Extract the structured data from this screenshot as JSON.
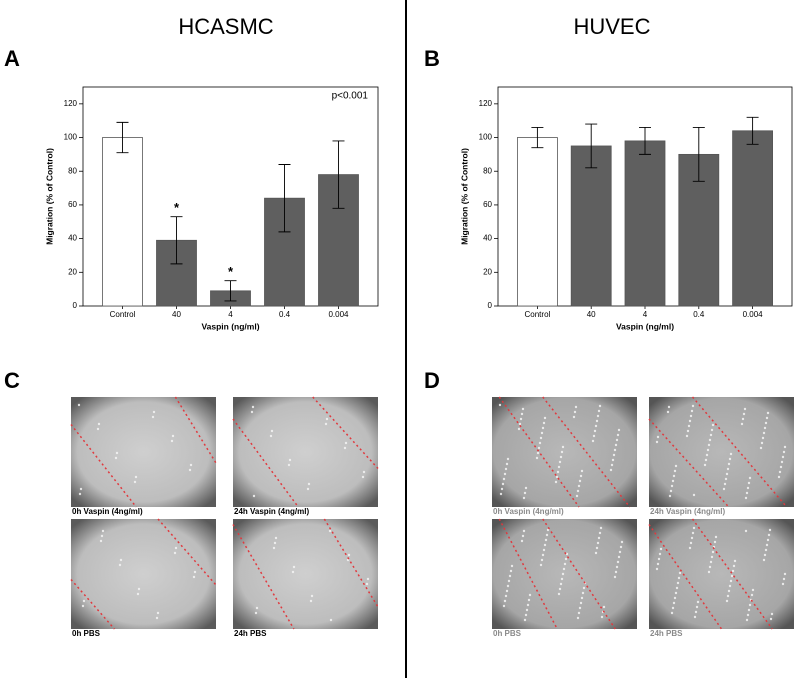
{
  "columns": [
    "HCASMC",
    "HUVEC"
  ],
  "panels": [
    "A",
    "B",
    "C",
    "D"
  ],
  "image_captions": {
    "C": [
      "0h Vaspin (4ng/ml)",
      "24h Vaspin (4ng/ml)",
      "0h PBS",
      "24h PBS"
    ],
    "D": [
      "0h Vaspin (4ng/ml)",
      "24h Vaspin (4ng/ml)",
      "0h PBS",
      "24h PBS"
    ]
  },
  "chart_data": [
    {
      "type": "bar",
      "x_label": "Vaspin (ng/ml)",
      "y_label": "Migration (% of Control)",
      "annotation": "p<0.001",
      "categories": [
        "Control",
        "40",
        "4",
        "0.4",
        "0.004"
      ],
      "values": [
        100,
        39,
        9,
        64,
        78
      ],
      "errors": [
        9,
        14,
        6,
        20,
        20
      ],
      "markers": [
        null,
        "*",
        "*",
        null,
        null
      ],
      "colors": [
        "#ffffff",
        "#5f5f5f",
        "#5f5f5f",
        "#5f5f5f",
        "#5f5f5f"
      ],
      "ylim": [
        0,
        130
      ],
      "yticks": [
        0,
        20,
        40,
        60,
        80,
        100,
        120
      ]
    },
    {
      "type": "bar",
      "x_label": "Vaspin (ng/ml)",
      "y_label": "Migration (% of Control)",
      "categories": [
        "Control",
        "40",
        "4",
        "0.4",
        "0.004"
      ],
      "values": [
        100,
        95,
        98,
        90,
        104
      ],
      "errors": [
        6,
        13,
        8,
        16,
        8
      ],
      "colors": [
        "#ffffff",
        "#5f5f5f",
        "#5f5f5f",
        "#5f5f5f",
        "#5f5f5f"
      ],
      "ylim": [
        0,
        130
      ],
      "yticks": [
        0,
        20,
        40,
        60,
        80,
        100,
        120
      ]
    }
  ]
}
